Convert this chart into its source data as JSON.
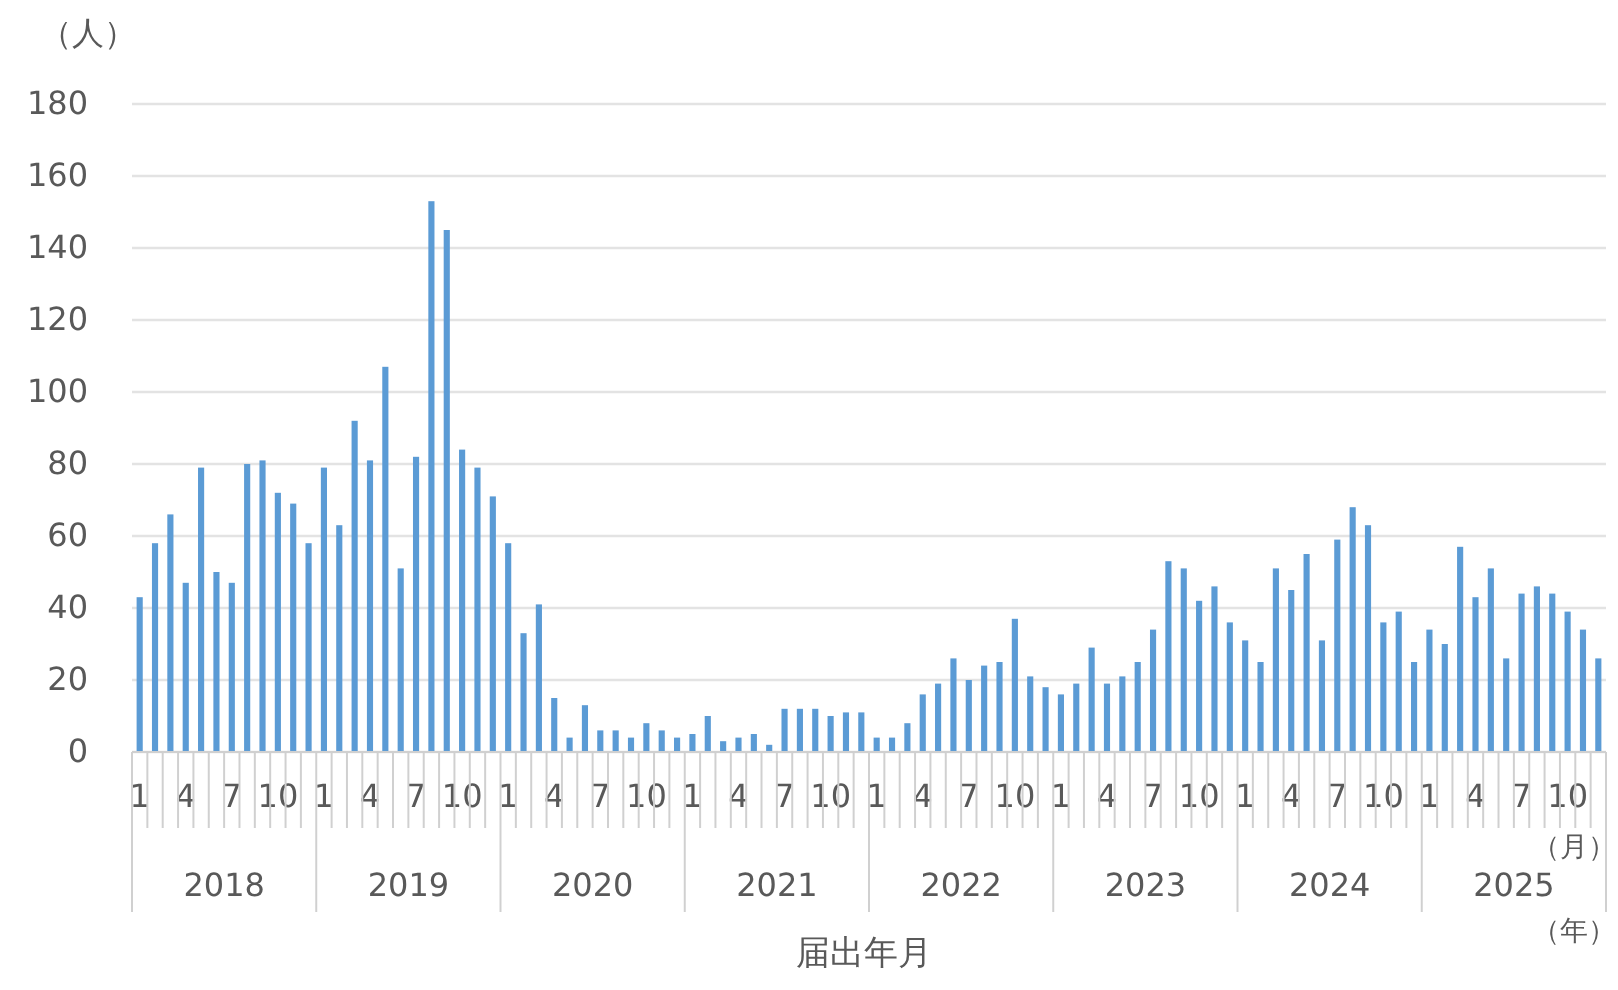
{
  "chart_data": {
    "type": "bar",
    "xlabel": "届出年月",
    "ylabel": "（人）",
    "categories": [
      "1",
      null,
      null,
      "4",
      null,
      null,
      "7",
      null,
      null,
      "10",
      null,
      null,
      "1",
      null,
      null,
      "4",
      null,
      null,
      "7",
      null,
      null,
      "10",
      null,
      null,
      "1",
      null,
      null,
      "4",
      null,
      null,
      "7",
      null,
      null,
      "10",
      null,
      null,
      "1",
      null,
      null,
      "4",
      null,
      null,
      "7",
      null,
      null,
      "10",
      null,
      null,
      "1",
      null,
      null,
      "4",
      null,
      null,
      "7",
      null,
      null,
      "10",
      null,
      null,
      "1",
      null,
      null,
      "4",
      null,
      null,
      "7",
      null,
      null,
      "10",
      null,
      null,
      "1",
      null,
      null,
      "4",
      null,
      null,
      "7",
      null,
      null,
      "10",
      null,
      null,
      "1",
      null,
      null,
      "4",
      null,
      null,
      "7",
      null,
      null,
      "10",
      null,
      null
    ],
    "values": [
      43,
      58,
      66,
      47,
      79,
      50,
      47,
      80,
      81,
      72,
      69,
      58,
      79,
      63,
      92,
      81,
      107,
      51,
      82,
      153,
      145,
      84,
      79,
      71,
      58,
      33,
      41,
      15,
      4,
      13,
      6,
      6,
      4,
      8,
      6,
      4,
      5,
      10,
      3,
      4,
      5,
      2,
      12,
      12,
      12,
      10,
      11,
      11,
      4,
      4,
      8,
      16,
      19,
      26,
      20,
      24,
      25,
      37,
      21,
      18,
      16,
      19,
      29,
      19,
      21,
      25,
      34,
      53,
      51,
      42,
      46,
      36,
      31,
      25,
      51,
      45,
      55,
      31,
      59,
      68,
      63,
      36,
      39,
      25,
      34,
      30,
      57,
      43,
      51,
      26,
      44,
      46,
      44,
      39,
      34,
      26
    ],
    "color": "#5b9bd5",
    "ylim": [
      0,
      180
    ],
    "yticks": [
      0,
      20,
      40,
      60,
      80,
      100,
      120,
      140,
      160,
      180
    ],
    "grid": "y",
    "annotations": [
      "2018",
      "2019",
      "2020",
      "2021",
      "2022",
      "2023",
      "2024",
      "2025",
      "（月）",
      "（年）"
    ]
  }
}
